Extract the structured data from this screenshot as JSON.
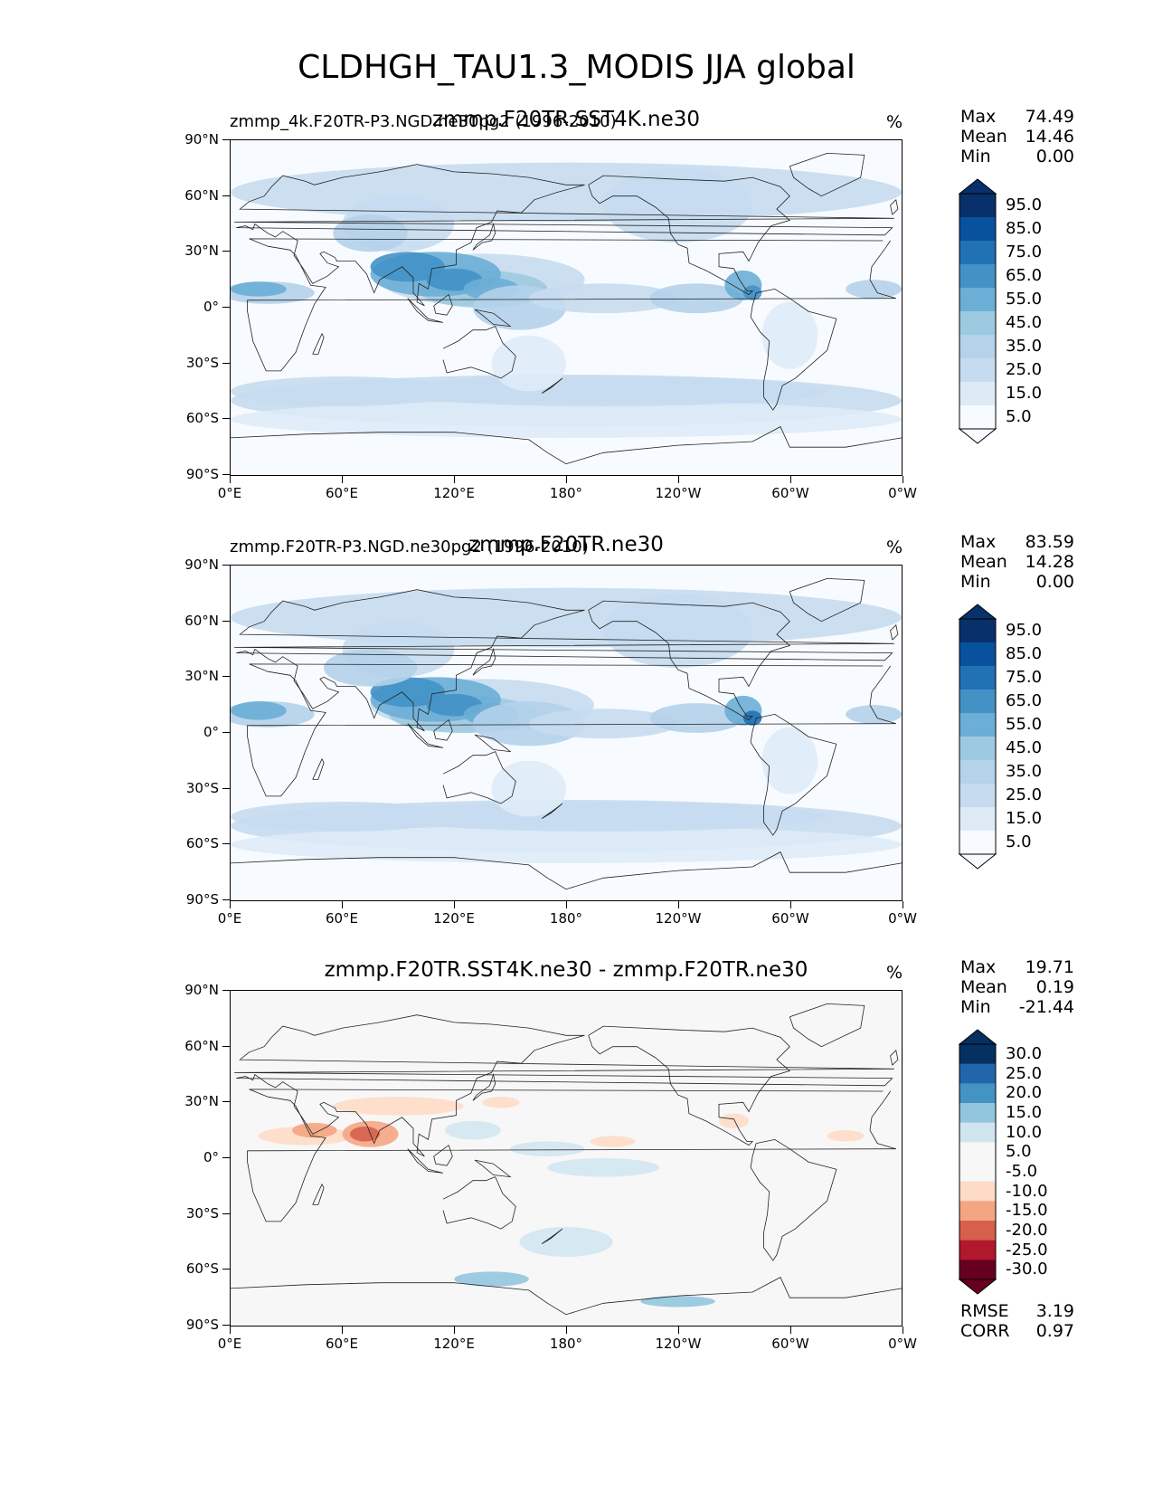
{
  "figure_title": "CLDHGH_TAU1.3_MODIS JJA global",
  "chart_data": [
    {
      "type": "heatmap",
      "subtitle_left": "zmmp_4k.F20TR-P3.NGD.ne30pg2 (1996-2010)",
      "subtitle_center": "zmmp.F20TR.SST4K.ne30",
      "units": "%",
      "stats": {
        "max_label": "Max",
        "max": "74.49",
        "mean_label": "Mean",
        "mean": "14.46",
        "min_label": "Min",
        "min": "0.00"
      },
      "colorbar_levels": [
        "95.0",
        "85.0",
        "75.0",
        "65.0",
        "55.0",
        "45.0",
        "35.0",
        "25.0",
        "15.0",
        "5.0"
      ],
      "colormap": "Blues",
      "xlim": [
        0,
        360
      ],
      "ylim": [
        -90,
        90
      ],
      "xticks": [
        "0°E",
        "60°E",
        "120°E",
        "180°",
        "120°W",
        "60°W",
        "0°W"
      ],
      "yticks": [
        "90°N",
        "60°N",
        "30°N",
        "0°",
        "30°S",
        "60°S",
        "90°S"
      ]
    },
    {
      "type": "heatmap",
      "subtitle_left": "zmmp.F20TR-P3.NGD.ne30pg2 (1996-2010)",
      "subtitle_center": "zmmp.F20TR.ne30",
      "units": "%",
      "stats": {
        "max_label": "Max",
        "max": "83.59",
        "mean_label": "Mean",
        "mean": "14.28",
        "min_label": "Min",
        "min": "0.00"
      },
      "colorbar_levels": [
        "95.0",
        "85.0",
        "75.0",
        "65.0",
        "55.0",
        "45.0",
        "35.0",
        "25.0",
        "15.0",
        "5.0"
      ],
      "colormap": "Blues",
      "xlim": [
        0,
        360
      ],
      "ylim": [
        -90,
        90
      ],
      "xticks": [
        "0°E",
        "60°E",
        "120°E",
        "180°",
        "120°W",
        "60°W",
        "0°W"
      ],
      "yticks": [
        "90°N",
        "60°N",
        "30°N",
        "0°",
        "30°S",
        "60°S",
        "90°S"
      ]
    },
    {
      "type": "heatmap",
      "subtitle_left": "",
      "subtitle_center": "zmmp.F20TR.SST4K.ne30 - zmmp.F20TR.ne30",
      "units": "%",
      "stats": {
        "max_label": "Max",
        "max": "19.71",
        "mean_label": "Mean",
        "mean": "0.19",
        "min_label": "Min",
        "min": "-21.44"
      },
      "colorbar_levels": [
        "30.0",
        "25.0",
        "20.0",
        "15.0",
        "10.0",
        "5.0",
        "-5.0",
        "-10.0",
        "-15.0",
        "-20.0",
        "-25.0",
        "-30.0"
      ],
      "colormap": "RdBu",
      "metrics": {
        "rmse_label": "RMSE",
        "rmse": "3.19",
        "corr_label": "CORR",
        "corr": "0.97"
      },
      "xlim": [
        0,
        360
      ],
      "ylim": [
        -90,
        90
      ],
      "xticks": [
        "0°E",
        "60°E",
        "120°E",
        "180°",
        "120°W",
        "60°W",
        "0°W"
      ],
      "yticks": [
        "90°N",
        "60°N",
        "30°N",
        "0°",
        "30°S",
        "60°S",
        "90°S"
      ]
    }
  ]
}
